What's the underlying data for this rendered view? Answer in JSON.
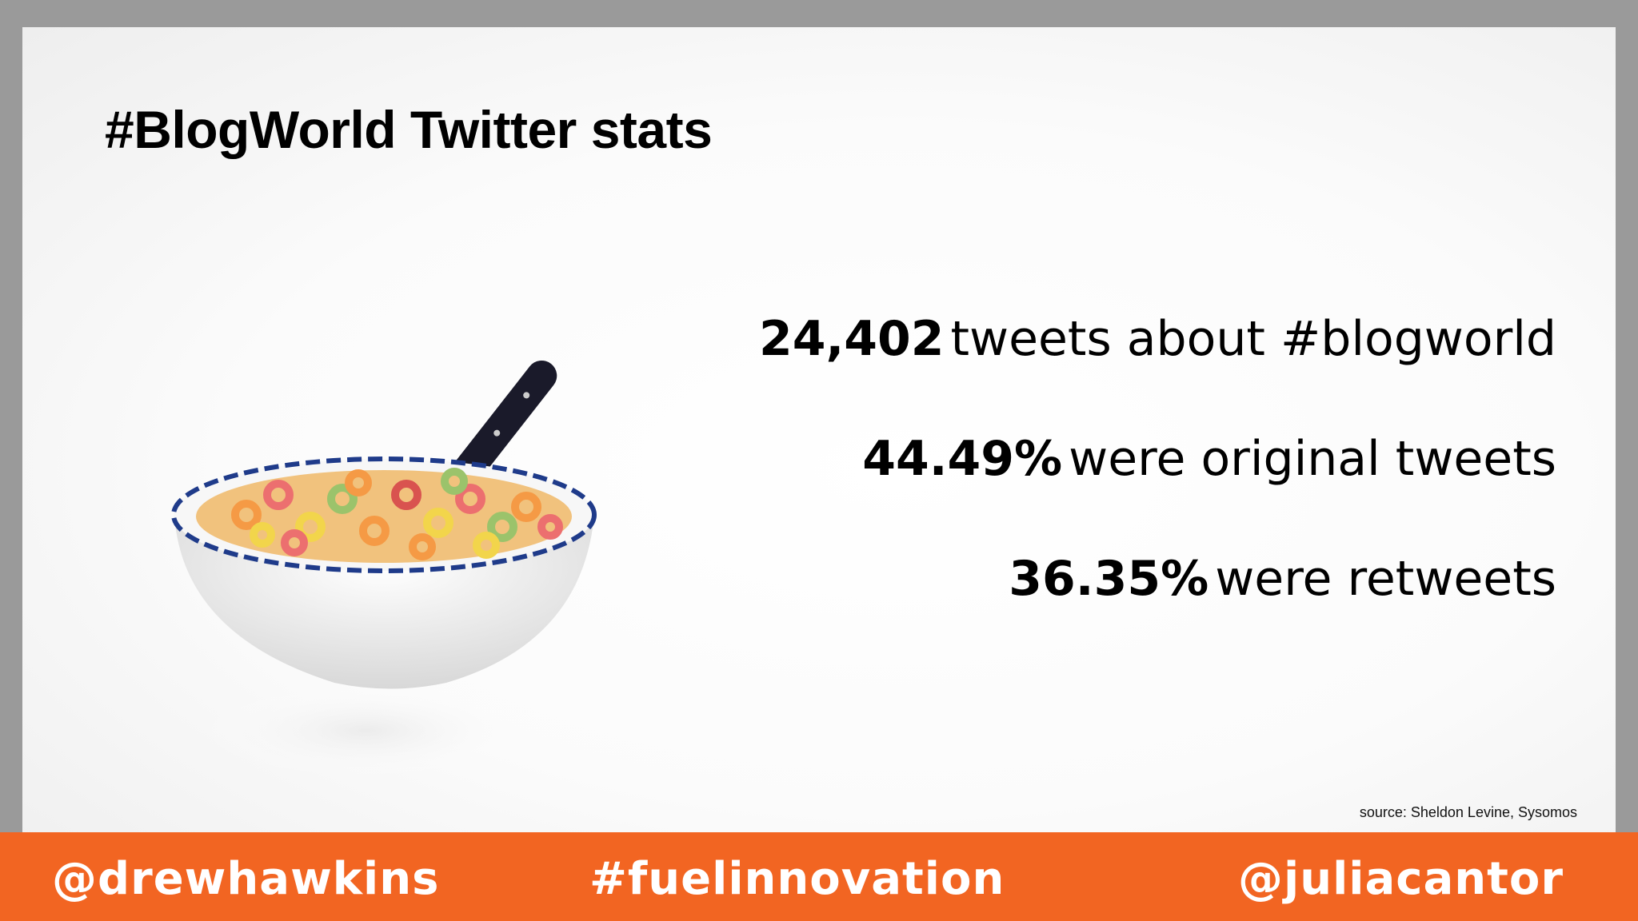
{
  "slide": {
    "title": "#BlogWorld Twitter stats",
    "stats": [
      {
        "value": "24,402",
        "text": "tweets about #blogworld"
      },
      {
        "value": "44.49%",
        "text": "were original tweets"
      },
      {
        "value": "36.35%",
        "text": "were retweets"
      }
    ],
    "source": "source: Sheldon Levine, Sysomos",
    "image_icon": "cereal-bowl-with-spoon"
  },
  "footer": {
    "left_handle": "@drewhawkins",
    "hashtag": "#fuelinnovation",
    "right_handle": "@juliacantor"
  },
  "colors": {
    "footer_bg": "#f26522",
    "frame": "#9a9a9a",
    "text": "#000000"
  }
}
